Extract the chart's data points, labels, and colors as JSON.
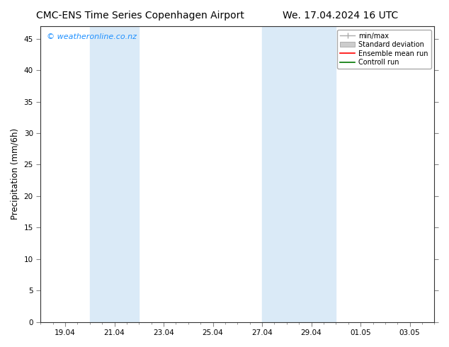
{
  "title_left": "CMC-ENS Time Series Copenhagen Airport",
  "title_right": "We. 17.04.2024 16 UTC",
  "ylabel": "Precipitation (mm/6h)",
  "xlabel": "",
  "ylim": [
    0,
    47
  ],
  "yticks": [
    0,
    5,
    10,
    15,
    20,
    25,
    30,
    35,
    40,
    45
  ],
  "bg_color": "#ffffff",
  "plot_bg_color": "#ffffff",
  "watermark": "© weatheronline.co.nz",
  "watermark_color": "#1E90FF",
  "xtick_labels": [
    "19.04",
    "21.04",
    "23.04",
    "25.04",
    "27.04",
    "29.04",
    "01.05",
    "03.05"
  ],
  "xtick_positions": [
    2,
    6,
    10,
    14,
    18,
    22,
    26,
    30
  ],
  "xmin": 0,
  "xmax": 32,
  "shaded_band1_xstart": 4,
  "shaded_band1_xend": 8,
  "shaded_band2_xstart": 18,
  "shaded_band2_xend": 24,
  "shaded_color": "#daeaf7",
  "title_fontsize": 10,
  "tick_fontsize": 7.5,
  "label_fontsize": 8.5,
  "legend_fontsize": 7,
  "watermark_fontsize": 8
}
